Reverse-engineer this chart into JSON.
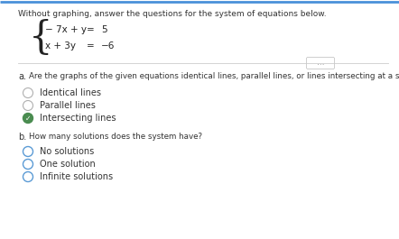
{
  "title": "Without graphing, answer the questions for the system of equations below.",
  "eq1": "− 7x + y  =  5",
  "eq2": "   x + 3y  =  −6",
  "part_a_label": "a. ",
  "part_a_question": "Are the graphs of the given equations identical lines, parallel lines, or lines intersecting at a single point?",
  "options_a": [
    "Identical lines",
    "Parallel lines",
    "Intersecting lines"
  ],
  "options_a_selected": 2,
  "part_b_label": "b.",
  "part_b_question": "How many solutions does the system have?",
  "options_b": [
    "No solutions",
    "One solution",
    "Infinite solutions"
  ],
  "options_b_selected": -1,
  "bg_color": "#ffffff",
  "panel_color": "#ffffff",
  "text_color": "#333333",
  "radio_color_unselected": "#5b9bd5",
  "radio_color_selected_fill": "#4a8c50",
  "separator_color": "#cccccc",
  "dots_color": "#888888",
  "equation_color": "#222222",
  "left_border_color": "#4a90d9",
  "label_color": "#444444"
}
